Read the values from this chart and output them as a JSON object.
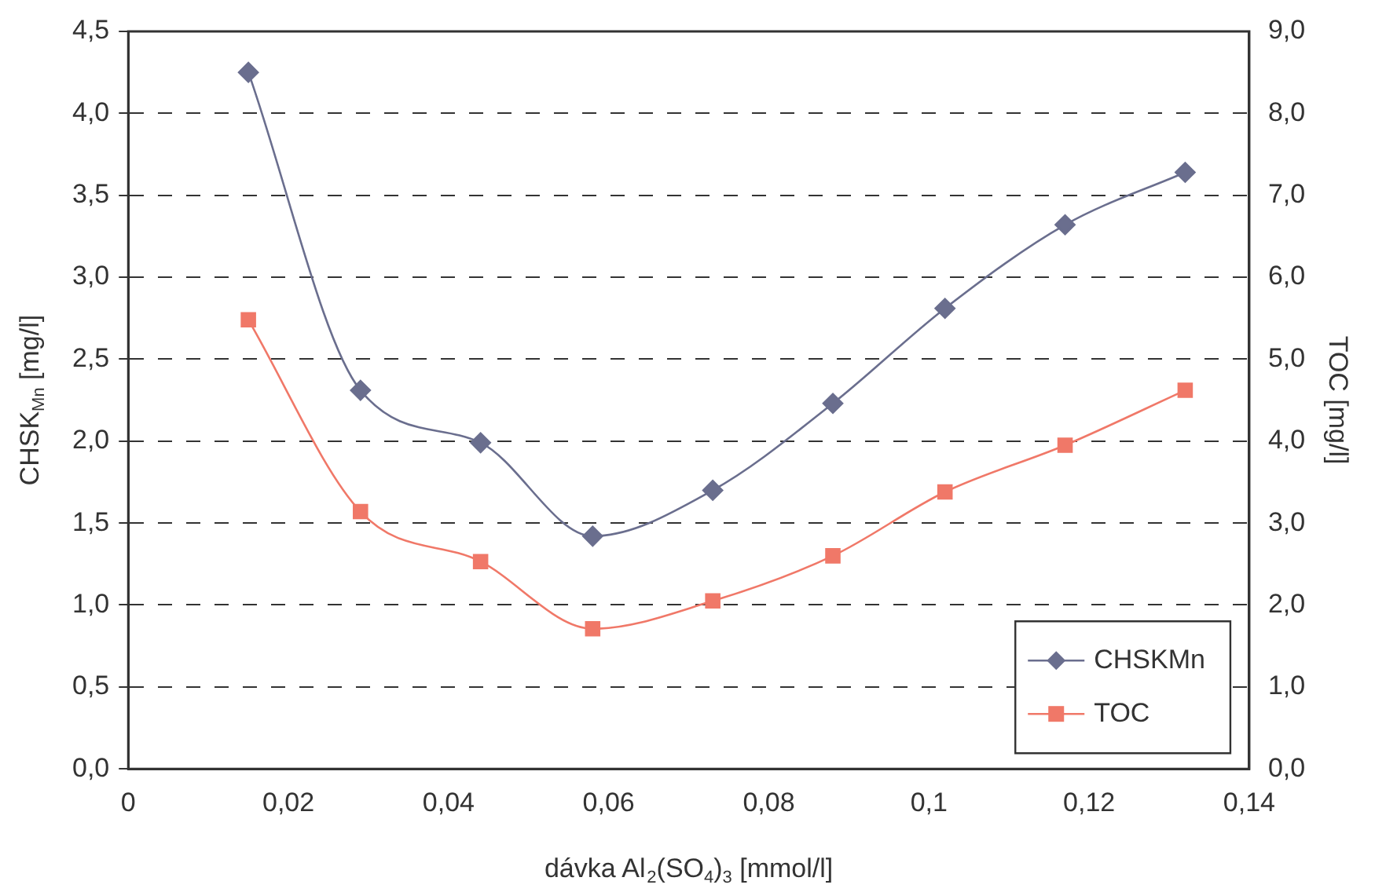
{
  "chart_data": {
    "type": "line",
    "xlabel": "dávka Al$_{2}$(SO$_{4}$)$_{3}$ [mmol/l]",
    "ylabel": "CHSK$_{Mn}$ [mg/l]",
    "y2label": "TOC [mg/l]",
    "x": [
      0.015,
      0.029,
      0.044,
      0.058,
      0.073,
      0.088,
      0.102,
      0.117,
      0.132
    ],
    "series": [
      {
        "name": "CHSKMn",
        "color": "#6a6e8e",
        "marker": "diamond",
        "values": [
          4.25,
          2.31,
          1.99,
          1.42,
          1.7,
          2.23,
          2.81,
          3.32,
          3.64
        ]
      },
      {
        "name": "TOC",
        "color": "#f07868",
        "marker": "square",
        "axis": "y2",
        "values": [
          5.48,
          3.14,
          2.53,
          1.71,
          2.05,
          2.6,
          3.38,
          3.95,
          4.62
        ]
      }
    ],
    "xlim": [
      0,
      0.14
    ],
    "xticks": [
      0,
      {
        "value": 0.02,
        "label": "0,02"
      },
      {
        "value": 0.04,
        "label": "0,04"
      },
      {
        "value": 0.06,
        "label": "0,06"
      },
      {
        "value": 0.08,
        "label": "0,08"
      },
      {
        "value": 0.1,
        "label": "0,1"
      },
      {
        "value": 0.12,
        "label": "0,12"
      },
      {
        "value": 0.14,
        "label": "0,14"
      }
    ],
    "ylim": [
      0,
      4.5
    ],
    "yticks": [
      {
        "value": 0,
        "label": "0,0"
      },
      {
        "value": 0.5,
        "label": "0,5"
      },
      {
        "value": 1,
        "label": "1,0"
      },
      {
        "value": 1.5,
        "label": "1,5"
      },
      {
        "value": 2,
        "label": "2,0"
      },
      {
        "value": 2.5,
        "label": "2,5"
      },
      {
        "value": 3,
        "label": "3,0"
      },
      {
        "value": 3.5,
        "label": "3,5"
      },
      {
        "value": 4,
        "label": "4,0"
      },
      {
        "value": 4.5,
        "label": "4,5"
      }
    ],
    "y2lim": [
      0,
      9
    ],
    "y2ticks": [
      {
        "value": 0,
        "label": "0,0"
      },
      {
        "value": 1,
        "label": "1,0"
      },
      {
        "value": 2,
        "label": "2,0"
      },
      {
        "value": 3,
        "label": "3,0"
      },
      {
        "value": 4,
        "label": "4,0"
      },
      {
        "value": 5,
        "label": "5,0"
      },
      {
        "value": 6,
        "label": "6,0"
      },
      {
        "value": 7,
        "label": "7,0"
      },
      {
        "value": 8,
        "label": "8,0"
      },
      {
        "value": 9,
        "label": "9,0"
      }
    ],
    "grid": "y",
    "legend": "bottom right",
    "line_style": "solid"
  }
}
